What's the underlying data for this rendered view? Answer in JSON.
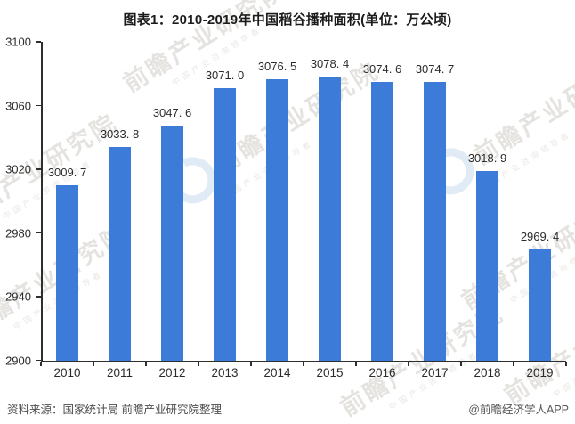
{
  "title": "图表1：2010-2019年中国稻谷播种面积(单位：万公顷)",
  "footer": {
    "source": "资料来源：国家统计局 前瞻产业研究院整理",
    "credit": "@前瞻经济学人APP"
  },
  "watermark": {
    "logo_icon": "qianzhan-crescent-logo",
    "main_text": "前瞻产业研究院",
    "sub_text": "中国产业咨询领导者"
  },
  "colors": {
    "bar": "#3c7bd8",
    "axis": "#2e2e2e",
    "title_text": "#1b1b1b",
    "value_label_text": "#2b2b2b",
    "footer_text": "#4d4d4d",
    "watermark_gray": "#bdb7ae",
    "watermark_blue": "#afccea"
  },
  "chart_data": {
    "type": "bar",
    "title": "图表1：2010-2019年中国稻谷播种面积(单位：万公顷)",
    "categories": [
      "2010",
      "2011",
      "2012",
      "2013",
      "2014",
      "2015",
      "2016",
      "2017",
      "2018",
      "2019"
    ],
    "values": [
      3009.7,
      3033.8,
      3047.6,
      3071.0,
      3076.5,
      3078.4,
      3074.6,
      3074.7,
      3018.9,
      2969.4
    ],
    "value_labels": [
      "3009. 7",
      "3033. 8",
      "3047. 6",
      "3071. 0",
      "3076. 5",
      "3078. 4",
      "3074. 6",
      "3074. 7",
      "3018. 9",
      "2969. 4"
    ],
    "xlabel": "",
    "ylabel": "",
    "unit": "万公顷",
    "ylim": [
      2900,
      3100
    ],
    "yticks": [
      2900,
      2940,
      2980,
      3020,
      3060,
      3100
    ],
    "grid": false,
    "legend": false,
    "bar_color": "#3c7bd8"
  }
}
